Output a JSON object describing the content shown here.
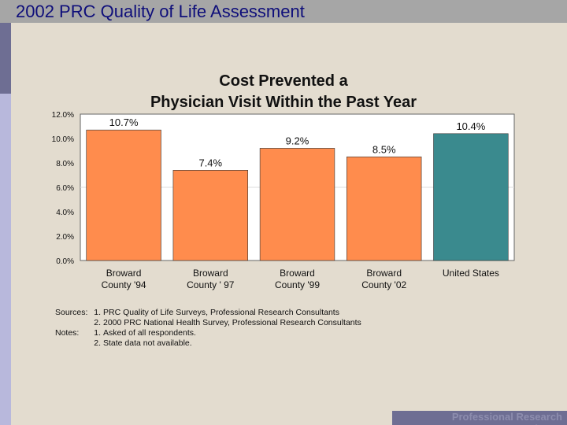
{
  "slide": {
    "title": "2002 PRC Quality of Life Assessment",
    "footer": "Professional Research Consultants"
  },
  "chart_data": {
    "type": "bar",
    "title_line1": "Cost Prevented a",
    "title_line2": "Physician Visit Within the Past Year",
    "categories": [
      [
        "Broward",
        "County '94"
      ],
      [
        "Broward",
        "County ' 97"
      ],
      [
        "Broward",
        "County '99"
      ],
      [
        "Broward",
        "County '02"
      ],
      [
        "United States",
        ""
      ]
    ],
    "values": [
      10.7,
      7.4,
      9.2,
      8.5,
      10.4
    ],
    "value_labels": [
      "10.7%",
      "7.4%",
      "9.2%",
      "8.5%",
      "10.4%"
    ],
    "bar_colors": [
      "#ff8c4d",
      "#ff8c4d",
      "#ff8c4d",
      "#ff8c4d",
      "#3a8a8e"
    ],
    "yticks": [
      "0.0%",
      "2.0%",
      "4.0%",
      "6.0%",
      "8.0%",
      "10.0%",
      "12.0%"
    ],
    "ylim": [
      0,
      12
    ],
    "xlabel": "",
    "ylabel": ""
  },
  "notes": {
    "sources_label": "Sources:",
    "source_1_num": "1.",
    "source_1": "PRC Quality of Life Surveys, Professional Research Consultants",
    "source_2_num": "2.",
    "source_2": "2000 PRC National Health Survey, Professional Research Consultants",
    "notes_label": "Notes:",
    "note_1_num": "1.",
    "note_1": "Asked of all respondents.",
    "note_2_num": "2.",
    "note_2": "State data not available."
  }
}
